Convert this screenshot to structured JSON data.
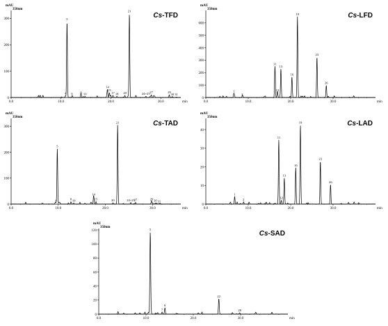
{
  "chart_data": [
    {
      "type": "line",
      "title": "Cs-TFD",
      "title_prefix": "Cs",
      "title_suffix": "-TFD",
      "yunit": "mAU",
      "wavelength": "350nm",
      "xlabel": "min",
      "xlim": [
        0,
        34
      ],
      "ylim": [
        0,
        330
      ],
      "xticks": [
        "0.0",
        "10.0",
        "20.0",
        "30.0"
      ],
      "yticks": [
        "0",
        "100",
        "200",
        "300"
      ],
      "peaks": [
        {
          "label": "4",
          "rt": 10.9,
          "h": 6
        },
        {
          "label": "5",
          "rt": 11.2,
          "h": 288
        },
        {
          "label": "6",
          "rt": 12.2,
          "h": 5
        },
        {
          "label": "8",
          "rt": 14.0,
          "h": 9
        },
        {
          "label": "10",
          "rt": 14.8,
          "h": 4
        },
        {
          "label": "14",
          "rt": 19.3,
          "h": 30
        },
        {
          "label": "15",
          "rt": 19.7,
          "h": 18
        },
        {
          "label": "17",
          "rt": 20.4,
          "h": 8
        },
        {
          "label": "18",
          "rt": 21.2,
          "h": 4
        },
        {
          "label": "20",
          "rt": 22.8,
          "h": 8
        },
        {
          "label": "21",
          "rt": 23.7,
          "h": 318
        },
        {
          "label": "24+25",
          "rt": 27.0,
          "h": 5
        },
        {
          "label": "27",
          "rt": 28.1,
          "h": 10
        },
        {
          "label": "29",
          "rt": 31.7,
          "h": 10
        },
        {
          "label": "30",
          "rt": 32.3,
          "h": 3
        },
        {
          "label": "31",
          "rt": 33.1,
          "h": 2
        }
      ]
    },
    {
      "type": "line",
      "title": "Cs-LFD",
      "title_prefix": "Cs",
      "title_suffix": "-LFD",
      "yunit": "mAU",
      "wavelength": "350nm",
      "xlabel": "min",
      "xlim": [
        0,
        40
      ],
      "ylim": [
        0,
        700
      ],
      "xticks": [
        "0.0",
        "10.0",
        "20.0",
        "30.0"
      ],
      "yticks": [
        "0",
        "100",
        "200",
        "300",
        "400",
        "500",
        "600"
      ],
      "peaks": [
        {
          "label": "1",
          "rt": 6.6,
          "h": 30
        },
        {
          "label": "2",
          "rt": 8.6,
          "h": 7
        },
        {
          "label": "11",
          "rt": 16.3,
          "h": 250
        },
        {
          "label": "12",
          "rt": 16.9,
          "h": 38
        },
        {
          "label": "13",
          "rt": 17.7,
          "h": 230
        },
        {
          "label": "16",
          "rt": 20.3,
          "h": 165
        },
        {
          "label": "19",
          "rt": 21.6,
          "h": 650
        },
        {
          "label": "23",
          "rt": 26.2,
          "h": 325
        },
        {
          "label": "26",
          "rt": 28.4,
          "h": 98
        }
      ]
    },
    {
      "type": "line",
      "title": "Cs-TAD",
      "title_prefix": "Cs",
      "title_suffix": "-TAD",
      "yunit": "mAU",
      "wavelength": "350nm",
      "xlabel": "min",
      "xlim": [
        0,
        36
      ],
      "ylim": [
        0,
        330
      ],
      "xticks": [
        "0.0",
        "10.0",
        "20.0",
        "30.0"
      ],
      "yticks": [
        "0",
        "100",
        "200",
        "300"
      ],
      "peaks": [
        {
          "label": "4",
          "rt": 9.5,
          "h": 4
        },
        {
          "label": "5",
          "rt": 9.8,
          "h": 213
        },
        {
          "label": "8",
          "rt": 12.7,
          "h": 9
        },
        {
          "label": "10",
          "rt": 13.3,
          "h": 4
        },
        {
          "label": "14",
          "rt": 17.5,
          "h": 28
        },
        {
          "label": "15",
          "rt": 18.0,
          "h": 10
        },
        {
          "label": "20",
          "rt": 21.6,
          "h": 5
        },
        {
          "label": "21",
          "rt": 22.6,
          "h": 305
        },
        {
          "label": "24+25",
          "rt": 25.4,
          "h": 6
        },
        {
          "label": "27",
          "rt": 26.4,
          "h": 7
        },
        {
          "label": "29",
          "rt": 29.8,
          "h": 9
        },
        {
          "label": "30",
          "rt": 30.6,
          "h": 4
        },
        {
          "label": "31",
          "rt": 31.4,
          "h": 2
        }
      ]
    },
    {
      "type": "line",
      "title": "Cs-LAD",
      "title_prefix": "Cs",
      "title_suffix": "-LAD",
      "yunit": "mAU",
      "wavelength": "350nm",
      "xlabel": "min",
      "xlim": [
        0,
        40
      ],
      "ylim": [
        0,
        46
      ],
      "xticks": [
        "0.0",
        "10.0",
        "20.0",
        "30.0"
      ],
      "yticks": [
        "0",
        "10",
        "20",
        "30",
        "40"
      ],
      "peaks": [
        {
          "label": "1",
          "rt": 6.8,
          "h": 4.0
        },
        {
          "label": "2",
          "rt": 8.9,
          "h": 1.2
        },
        {
          "label": "11",
          "rt": 17.2,
          "h": 34.5
        },
        {
          "label": "12",
          "rt": 17.8,
          "h": 2.0
        },
        {
          "label": "13",
          "rt": 18.5,
          "h": 14.0
        },
        {
          "label": "16",
          "rt": 21.2,
          "h": 19.5
        },
        {
          "label": "19",
          "rt": 22.3,
          "h": 42.5
        },
        {
          "label": "23",
          "rt": 27.0,
          "h": 23.0
        },
        {
          "label": "26",
          "rt": 29.4,
          "h": 10.5
        }
      ]
    },
    {
      "type": "line",
      "title": "Cs-SAD",
      "title_prefix": "Cs",
      "title_suffix": "-SAD",
      "yunit": "mAU",
      "wavelength": "350nm",
      "xlabel": "min",
      "xlim": [
        0,
        40
      ],
      "ylim": [
        0,
        122
      ],
      "xticks": [
        "0.0",
        "10.0",
        "20.0",
        "30.0"
      ],
      "yticks": [
        "0",
        "20",
        "40",
        "60",
        "80",
        "100",
        "120"
      ],
      "peaks": [
        {
          "label": "5",
          "rt": 10.9,
          "h": 117
        },
        {
          "label": "7",
          "rt": 13.4,
          "h": 3
        },
        {
          "label": "8",
          "rt": 14.0,
          "h": 9
        },
        {
          "label": "22",
          "rt": 25.4,
          "h": 22
        },
        {
          "label": "28",
          "rt": 29.8,
          "h": 2
        }
      ]
    }
  ]
}
